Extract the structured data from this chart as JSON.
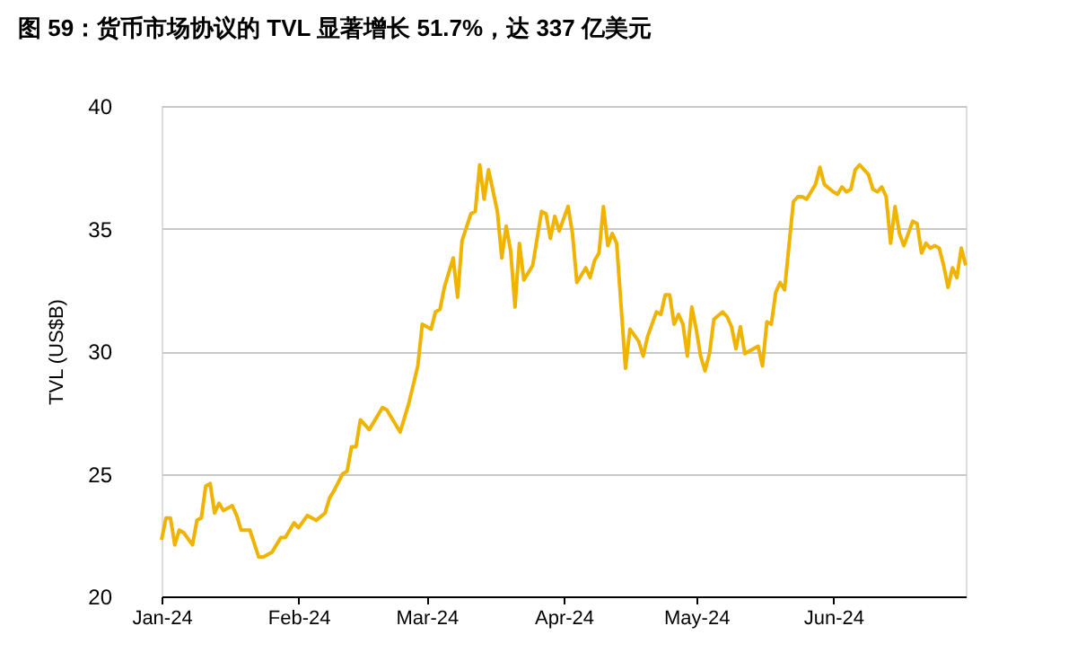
{
  "chart_data": {
    "type": "line",
    "title": "图 59：货币市场协议的 TVL 显著增长 51.7%，达 337 亿美元",
    "ylabel": "TVL (US$B)",
    "x": [
      "2024-01-01",
      "2024-01-02",
      "2024-01-03",
      "2024-01-04",
      "2024-01-05",
      "2024-01-06",
      "2024-01-08",
      "2024-01-09",
      "2024-01-10",
      "2024-01-11",
      "2024-01-12",
      "2024-01-13",
      "2024-01-14",
      "2024-01-15",
      "2024-01-17",
      "2024-01-18",
      "2024-01-19",
      "2024-01-21",
      "2024-01-23",
      "2024-01-24",
      "2024-01-26",
      "2024-01-28",
      "2024-01-29",
      "2024-01-31",
      "2024-02-01",
      "2024-02-03",
      "2024-02-05",
      "2024-02-07",
      "2024-02-08",
      "2024-02-09",
      "2024-02-11",
      "2024-02-12",
      "2024-02-13",
      "2024-02-14",
      "2024-02-15",
      "2024-02-17",
      "2024-02-20",
      "2024-02-21",
      "2024-02-24",
      "2024-02-26",
      "2024-02-28",
      "2024-02-29",
      "2024-03-02",
      "2024-03-03",
      "2024-03-04",
      "2024-03-05",
      "2024-03-07",
      "2024-03-08",
      "2024-03-09",
      "2024-03-11",
      "2024-03-12",
      "2024-03-13",
      "2024-03-14",
      "2024-03-15",
      "2024-03-17",
      "2024-03-18",
      "2024-03-19",
      "2024-03-20",
      "2024-03-21",
      "2024-03-22",
      "2024-03-23",
      "2024-03-25",
      "2024-03-27",
      "2024-03-28",
      "2024-03-29",
      "2024-03-30",
      "2024-03-31",
      "2024-04-02",
      "2024-04-03",
      "2024-04-04",
      "2024-04-06",
      "2024-04-07",
      "2024-04-08",
      "2024-04-09",
      "2024-04-10",
      "2024-04-11",
      "2024-04-12",
      "2024-04-13",
      "2024-04-15",
      "2024-04-16",
      "2024-04-18",
      "2024-04-19",
      "2024-04-20",
      "2024-04-22",
      "2024-04-23",
      "2024-04-24",
      "2024-04-25",
      "2024-04-26",
      "2024-04-27",
      "2024-04-28",
      "2024-04-29",
      "2024-04-30",
      "2024-05-01",
      "2024-05-02",
      "2024-05-03",
      "2024-05-04",
      "2024-05-05",
      "2024-05-07",
      "2024-05-08",
      "2024-05-09",
      "2024-05-10",
      "2024-05-11",
      "2024-05-12",
      "2024-05-14",
      "2024-05-15",
      "2024-05-16",
      "2024-05-17",
      "2024-05-18",
      "2024-05-19",
      "2024-05-20",
      "2024-05-21",
      "2024-05-23",
      "2024-05-24",
      "2024-05-25",
      "2024-05-26",
      "2024-05-28",
      "2024-05-29",
      "2024-05-30",
      "2024-06-01",
      "2024-06-02",
      "2024-06-03",
      "2024-06-04",
      "2024-06-05",
      "2024-06-06",
      "2024-06-07",
      "2024-06-09",
      "2024-06-10",
      "2024-06-11",
      "2024-06-12",
      "2024-06-13",
      "2024-06-14",
      "2024-06-15",
      "2024-06-16",
      "2024-06-17",
      "2024-06-19",
      "2024-06-20",
      "2024-06-21",
      "2024-06-22",
      "2024-06-23",
      "2024-06-24",
      "2024-06-25",
      "2024-06-26",
      "2024-06-27",
      "2024-06-28",
      "2024-06-29",
      "2024-06-30",
      "2024-07-01"
    ],
    "series": [
      {
        "color": "#f0b400",
        "values": [
          22.3,
          23.2,
          23.2,
          22.1,
          22.7,
          22.6,
          22.1,
          23.1,
          23.2,
          24.5,
          24.6,
          23.4,
          23.8,
          23.5,
          23.7,
          23.3,
          22.7,
          22.7,
          21.6,
          21.6,
          21.8,
          22.4,
          22.4,
          23.0,
          22.8,
          23.3,
          23.1,
          23.4,
          24.0,
          24.3,
          25.0,
          25.1,
          26.1,
          26.1,
          27.2,
          26.8,
          27.7,
          27.6,
          26.7,
          27.9,
          29.4,
          31.1,
          30.9,
          31.6,
          31.7,
          32.6,
          33.8,
          32.2,
          34.5,
          35.6,
          35.7,
          37.6,
          36.2,
          37.4,
          35.7,
          33.8,
          35.1,
          34.1,
          31.8,
          34.4,
          32.9,
          33.5,
          35.7,
          35.6,
          34.6,
          35.5,
          34.9,
          35.9,
          34.8,
          32.8,
          33.4,
          33.0,
          33.7,
          34.0,
          35.9,
          34.3,
          34.8,
          34.4,
          29.3,
          30.9,
          30.4,
          29.8,
          30.6,
          31.6,
          31.5,
          32.3,
          32.3,
          31.1,
          31.5,
          31.1,
          29.8,
          31.8,
          30.9,
          29.8,
          29.2,
          29.9,
          31.3,
          31.6,
          31.4,
          31.0,
          30.1,
          31.0,
          29.9,
          30.1,
          30.2,
          29.4,
          31.2,
          31.1,
          32.4,
          32.8,
          32.5,
          36.1,
          36.3,
          36.3,
          36.2,
          36.8,
          37.5,
          36.8,
          36.5,
          36.4,
          36.7,
          36.5,
          36.6,
          37.4,
          37.6,
          37.2,
          36.6,
          36.5,
          36.7,
          36.3,
          34.4,
          35.9,
          34.8,
          34.3,
          35.3,
          35.2,
          34.0,
          34.4,
          34.2,
          34.3,
          34.2,
          33.5,
          32.6,
          33.4,
          33.0,
          34.2,
          33.5
        ]
      }
    ],
    "xlim": [
      "2024-01-01",
      "2024-07-01"
    ],
    "xticks": [
      {
        "value": "2024-01-01",
        "label": "Jan-24"
      },
      {
        "value": "2024-02-01",
        "label": "Feb-24"
      },
      {
        "value": "2024-03-01",
        "label": "Mar-24"
      },
      {
        "value": "2024-04-01",
        "label": "Apr-24"
      },
      {
        "value": "2024-05-01",
        "label": "May-24"
      },
      {
        "value": "2024-06-01",
        "label": "Jun-24"
      }
    ],
    "ylim": [
      20,
      40
    ],
    "yticks": [
      20,
      25,
      30,
      35,
      40
    ],
    "grid": "y",
    "marker": "none",
    "line_style": "solid"
  }
}
